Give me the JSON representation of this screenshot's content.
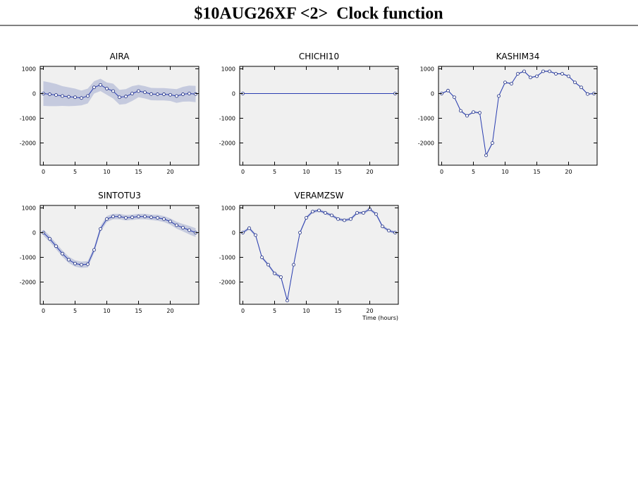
{
  "header": {
    "title": "$10AUG26XF <2>  Clock function"
  },
  "chart_data": [
    {
      "type": "line",
      "title": "AIRA",
      "xlim": [
        -0.5,
        24.5
      ],
      "ylim": [
        -2900,
        1100
      ],
      "xticks": [
        0,
        5,
        10,
        15,
        20
      ],
      "yticks": [
        1000,
        0,
        -1000,
        -2000
      ],
      "color": "#2a3eb1",
      "band_color": "#c5cade",
      "x": [
        0,
        1,
        2,
        3,
        4,
        5,
        6,
        7,
        8,
        9,
        10,
        11,
        12,
        13,
        14,
        15,
        16,
        17,
        18,
        19,
        20,
        21,
        22,
        23,
        24
      ],
      "values": [
        0,
        -30,
        -60,
        -100,
        -130,
        -150,
        -180,
        -100,
        250,
        350,
        200,
        100,
        -150,
        -120,
        0,
        100,
        50,
        -20,
        -30,
        -30,
        -50,
        -100,
        -30,
        0,
        -20
      ],
      "errors": [
        500,
        480,
        450,
        400,
        380,
        350,
        300,
        300,
        250,
        250,
        250,
        300,
        300,
        300,
        300,
        250,
        250,
        250,
        250,
        250,
        250,
        280,
        300,
        320,
        330
      ]
    },
    {
      "type": "line",
      "title": "CHICHI10",
      "xlim": [
        -0.5,
        24.5
      ],
      "ylim": [
        -2900,
        1100
      ],
      "xticks": [
        0,
        5,
        10,
        15,
        20
      ],
      "yticks": [
        1000,
        0,
        -1000,
        -2000
      ],
      "color": "#2a3eb1",
      "band_color": "#c5cade",
      "x": [
        0,
        24
      ],
      "values": [
        0,
        0
      ],
      "errors": [
        0,
        0
      ]
    },
    {
      "type": "line",
      "title": "KASHIM34",
      "xlim": [
        -0.5,
        24.5
      ],
      "ylim": [
        -2900,
        1100
      ],
      "xticks": [
        0,
        5,
        10,
        15,
        20
      ],
      "yticks": [
        1000,
        0,
        -1000,
        -2000
      ],
      "color": "#2a3eb1",
      "band_color": "#c5cade",
      "x": [
        0,
        1,
        2,
        3,
        4,
        5,
        6,
        7,
        8,
        9,
        10,
        11,
        12,
        13,
        14,
        15,
        16,
        17,
        18,
        19,
        20,
        21,
        22,
        23,
        24
      ],
      "values": [
        0,
        120,
        -150,
        -700,
        -900,
        -750,
        -780,
        -2500,
        -2000,
        -100,
        450,
        400,
        800,
        900,
        650,
        700,
        900,
        900,
        800,
        800,
        700,
        450,
        250,
        -20,
        0
      ],
      "errors": [
        30,
        30,
        30,
        40,
        40,
        40,
        40,
        50,
        50,
        40,
        30,
        30,
        30,
        30,
        30,
        30,
        30,
        30,
        30,
        30,
        30,
        30,
        30,
        30,
        30
      ]
    },
    {
      "type": "line",
      "title": "SINTOTU3",
      "xlim": [
        -0.5,
        24.5
      ],
      "ylim": [
        -2900,
        1100
      ],
      "xticks": [
        0,
        5,
        10,
        15,
        20
      ],
      "yticks": [
        1000,
        0,
        -1000,
        -2000
      ],
      "color": "#2a3eb1",
      "band_color": "#c5cade",
      "x": [
        0,
        1,
        2,
        3,
        4,
        5,
        6,
        7,
        8,
        9,
        10,
        11,
        12,
        13,
        14,
        15,
        16,
        17,
        18,
        19,
        20,
        21,
        22,
        23,
        24
      ],
      "values": [
        0,
        -250,
        -550,
        -850,
        -1100,
        -1250,
        -1300,
        -1280,
        -700,
        150,
        550,
        650,
        650,
        600,
        620,
        650,
        650,
        620,
        600,
        550,
        450,
        300,
        200,
        100,
        0
      ],
      "errors": [
        120,
        120,
        120,
        130,
        130,
        130,
        130,
        130,
        120,
        120,
        120,
        110,
        110,
        110,
        110,
        110,
        110,
        110,
        120,
        120,
        130,
        140,
        150,
        170,
        180
      ]
    },
    {
      "type": "line",
      "title": "VERAMZSW",
      "xlabel": "Time (hours)",
      "xlim": [
        -0.5,
        24.5
      ],
      "ylim": [
        -2900,
        1100
      ],
      "xticks": [
        0,
        5,
        10,
        15,
        20
      ],
      "yticks": [
        1000,
        0,
        -1000,
        -2000
      ],
      "color": "#2a3eb1",
      "band_color": "#c5cade",
      "x": [
        0,
        1,
        2,
        3,
        4,
        5,
        6,
        7,
        8,
        9,
        10,
        11,
        12,
        13,
        14,
        15,
        16,
        17,
        18,
        19,
        20,
        21,
        22,
        23,
        24
      ],
      "values": [
        0,
        180,
        -100,
        -1000,
        -1300,
        -1650,
        -1800,
        -2750,
        -1300,
        0,
        600,
        850,
        900,
        800,
        700,
        550,
        500,
        550,
        800,
        800,
        950,
        750,
        250,
        80,
        0
      ],
      "errors": [
        60,
        60,
        60,
        60,
        60,
        60,
        60,
        70,
        60,
        60,
        60,
        60,
        60,
        60,
        60,
        60,
        60,
        60,
        60,
        60,
        60,
        60,
        60,
        60,
        60
      ]
    }
  ]
}
